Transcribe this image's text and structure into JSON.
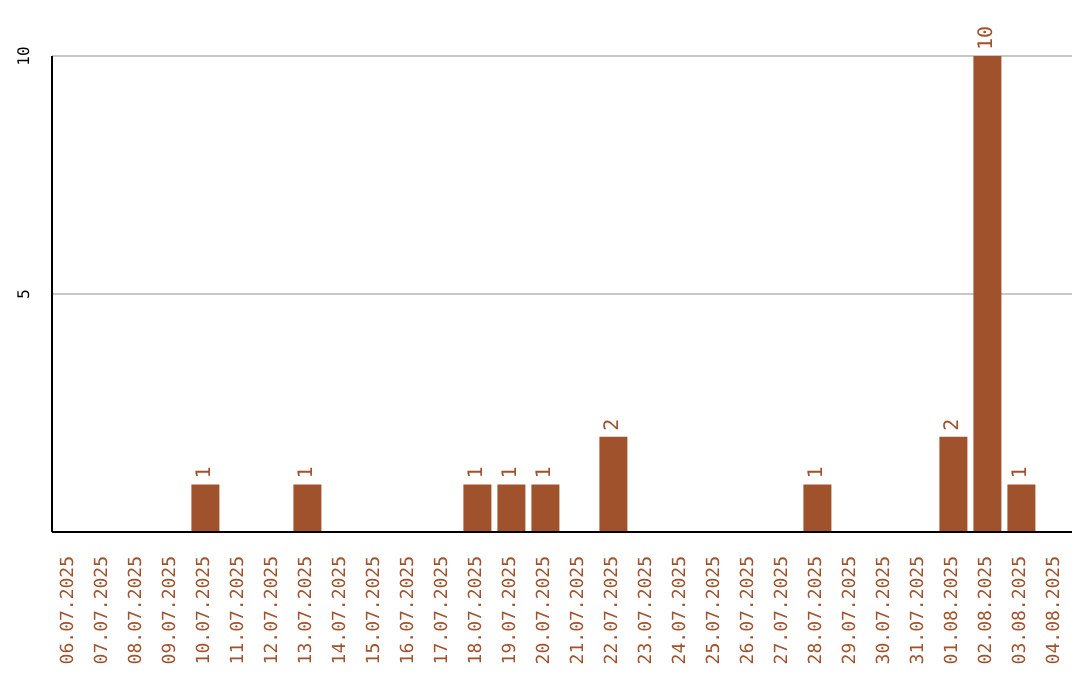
{
  "chart_data": {
    "type": "bar",
    "categories": [
      "06.07.2025",
      "07.07.2025",
      "08.07.2025",
      "09.07.2025",
      "10.07.2025",
      "11.07.2025",
      "12.07.2025",
      "13.07.2025",
      "14.07.2025",
      "15.07.2025",
      "16.07.2025",
      "17.07.2025",
      "18.07.2025",
      "19.07.2025",
      "20.07.2025",
      "21.07.2025",
      "22.07.2025",
      "23.07.2025",
      "24.07.2025",
      "25.07.2025",
      "26.07.2025",
      "27.07.2025",
      "28.07.2025",
      "29.07.2025",
      "30.07.2025",
      "31.07.2025",
      "01.08.2025",
      "02.08.2025",
      "03.08.2025",
      "04.08.2025"
    ],
    "values": [
      0,
      0,
      0,
      0,
      1,
      0,
      0,
      1,
      0,
      0,
      0,
      0,
      1,
      1,
      1,
      0,
      2,
      0,
      0,
      0,
      0,
      0,
      1,
      0,
      0,
      0,
      2,
      10,
      1,
      0
    ],
    "value_labels": [
      null,
      null,
      null,
      null,
      "1",
      null,
      null,
      "1",
      null,
      null,
      null,
      null,
      "1",
      "1",
      "1",
      null,
      "2",
      null,
      null,
      null,
      null,
      null,
      "1",
      null,
      null,
      null,
      "2",
      "10",
      "1",
      null
    ],
    "color": "#a0522d",
    "ylim": [
      0,
      10
    ],
    "yticks": [
      5,
      10
    ],
    "grid": "y"
  }
}
